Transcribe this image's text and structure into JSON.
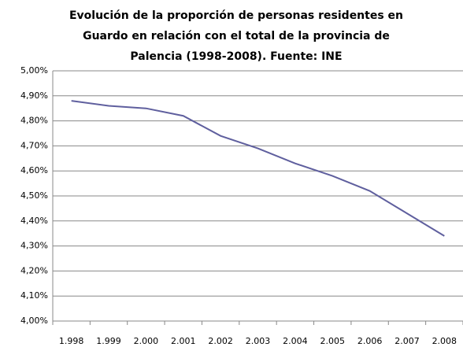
{
  "chart_data": {
    "type": "line",
    "title": [
      "Evolución de la proporción de personas residentes en",
      "Guardo en relación con el total de la provincia de",
      "Palencia (1998-2008). Fuente: INE"
    ],
    "categories": [
      "1.998",
      "1.999",
      "2.000",
      "2.001",
      "2.002",
      "2.003",
      "2.004",
      "2.005",
      "2.006",
      "2.007",
      "2.008"
    ],
    "series": [
      {
        "color": "#5f5f9e",
        "values": [
          4.88,
          4.86,
          4.85,
          4.82,
          4.74,
          4.69,
          4.63,
          4.58,
          4.52,
          4.43,
          4.34
        ]
      }
    ],
    "ylim": [
      4.0,
      5.0
    ],
    "yticks": [
      {
        "value": 4.0,
        "label": "4,00%"
      },
      {
        "value": 4.1,
        "label": "4,10%"
      },
      {
        "value": 4.2,
        "label": "4,20%"
      },
      {
        "value": 4.3,
        "label": "4,30%"
      },
      {
        "value": 4.4,
        "label": "4,40%"
      },
      {
        "value": 4.5,
        "label": "4,50%"
      },
      {
        "value": 4.6,
        "label": "4,60%"
      },
      {
        "value": 4.7,
        "label": "4,70%"
      },
      {
        "value": 4.8,
        "label": "4,80%"
      },
      {
        "value": 4.9,
        "label": "4,90%"
      },
      {
        "value": 5.0,
        "label": "5,00%"
      }
    ],
    "grid": true
  }
}
